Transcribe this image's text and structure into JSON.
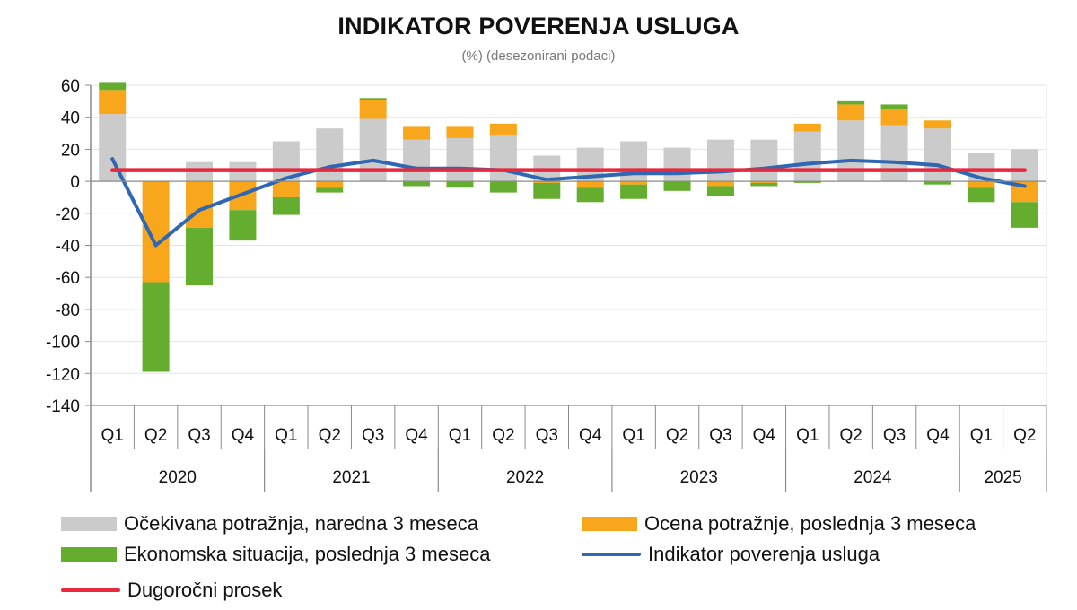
{
  "chart_data": {
    "type": "bar",
    "title": "INDIKATOR POVERENJA USLUGA",
    "subtitle": "(%) (desezonirani podaci)",
    "ylim": [
      -140,
      60
    ],
    "yticks": [
      60,
      40,
      20,
      0,
      -20,
      -40,
      -60,
      -80,
      -100,
      -120,
      -140
    ],
    "ytick_labels": [
      "60",
      "40",
      "20",
      "0",
      "-20",
      "-40",
      "-60",
      "-80",
      "-100",
      "-120",
      "-140"
    ],
    "grid": true,
    "legend_position": "bottom",
    "categories": [
      "Q1",
      "Q2",
      "Q3",
      "Q4",
      "Q1",
      "Q2",
      "Q3",
      "Q4",
      "Q1",
      "Q2",
      "Q3",
      "Q4",
      "Q1",
      "Q2",
      "Q3",
      "Q4",
      "Q1",
      "Q2",
      "Q3",
      "Q4",
      "Q1",
      "Q2"
    ],
    "year_groups": [
      {
        "label": "2020",
        "count": 4
      },
      {
        "label": "2021",
        "count": 4
      },
      {
        "label": "2022",
        "count": 4
      },
      {
        "label": "2023",
        "count": 4
      },
      {
        "label": "2024",
        "count": 4
      },
      {
        "label": "2025",
        "count": 2
      }
    ],
    "series": [
      {
        "name": "Očekivana potražnja, naredna 3 meseca",
        "kind": "stacked-bar",
        "color": "#cbcbcb",
        "values": [
          42,
          0,
          12,
          12,
          25,
          33,
          39,
          26,
          27,
          29,
          16,
          21,
          25,
          21,
          26,
          26,
          31,
          38,
          35,
          33,
          18,
          20
        ]
      },
      {
        "name": "Ocena potražnje, poslednja 3 meseca",
        "kind": "stacked-bar",
        "color": "#f8a61c",
        "values": [
          15,
          -63,
          -29,
          -18,
          -10,
          -4,
          12,
          8,
          7,
          7,
          -1,
          -4,
          -2,
          0,
          -3,
          -1,
          5,
          10,
          10,
          5,
          -4,
          -13
        ]
      },
      {
        "name": "Ekonomska situacija, poslednja 3 meseca",
        "kind": "stacked-bar",
        "color": "#64ad2e",
        "values": [
          5,
          -56,
          -36,
          -19,
          -11,
          -3,
          1,
          -3,
          -4,
          -7,
          -10,
          -9,
          -9,
          -6,
          -6,
          -2,
          -1,
          2,
          3,
          -2,
          -9,
          -16
        ]
      },
      {
        "name": "Indikator poverenja usluga",
        "kind": "line",
        "color": "#2f67b2",
        "values": [
          14,
          -40,
          -18,
          -8,
          2,
          9,
          13,
          8,
          8,
          7,
          1,
          3,
          5,
          5,
          6,
          8,
          11,
          13,
          12,
          10,
          2,
          -3
        ]
      },
      {
        "name": "Dugoročni prosek",
        "kind": "line",
        "color": "#e8283c",
        "values": [
          7,
          7,
          7,
          7,
          7,
          7,
          7,
          7,
          7,
          7,
          7,
          7,
          7,
          7,
          7,
          7,
          7,
          7,
          7,
          7,
          7,
          7
        ]
      }
    ]
  },
  "colors": {
    "grid": "#e3e3e3",
    "axis": "#8a8a8a",
    "background": "#ffffff"
  },
  "legend": {
    "items": [
      {
        "label": "Očekivana potražnja, naredna 3 meseca",
        "swatch": "bar",
        "color": "#cbcbcb"
      },
      {
        "label": "Ocena potražnje, poslednja 3 meseca",
        "swatch": "bar",
        "color": "#f8a61c"
      },
      {
        "label": "Ekonomska situacija, poslednja 3 meseca",
        "swatch": "bar",
        "color": "#64ad2e"
      },
      {
        "label": "Indikator poverenja usluga",
        "swatch": "line",
        "color": "#2f67b2"
      },
      {
        "label": "Dugoročni prosek",
        "swatch": "line",
        "color": "#e8283c"
      }
    ]
  }
}
